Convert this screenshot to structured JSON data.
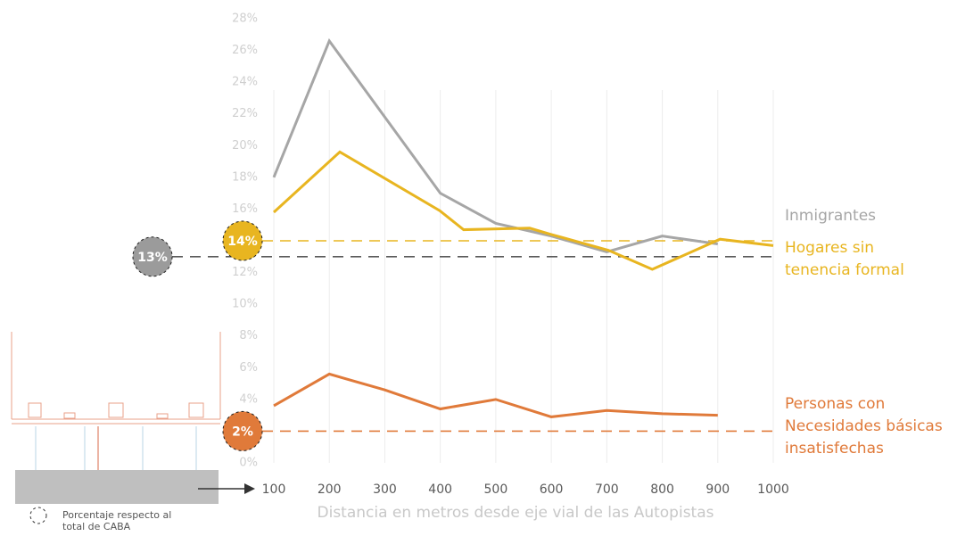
{
  "chart_data": {
    "type": "line",
    "x_label": "Distancia en metros desde eje vial de las Autopistas",
    "note": "Porcentaje respecto al total de CABA",
    "xlim": [
      100,
      1000
    ],
    "xticks": [
      100,
      200,
      300,
      400,
      500,
      600,
      700,
      800,
      900,
      1000
    ],
    "ylim": [
      0,
      28
    ],
    "yticks": [
      {
        "value": 0,
        "label": "0%"
      },
      {
        "value": 2,
        "label": "2%"
      },
      {
        "value": 4,
        "label": "4%"
      },
      {
        "value": 6,
        "label": "6%"
      },
      {
        "value": 8,
        "label": "8%"
      },
      {
        "value": 10,
        "label": "10%"
      },
      {
        "value": 12,
        "label": "12%"
      },
      {
        "value": 14,
        "label": "14%"
      },
      {
        "value": 16,
        "label": "16%"
      },
      {
        "value": 18,
        "label": "18%"
      },
      {
        "value": 20,
        "label": "20%"
      },
      {
        "value": 22,
        "label": "22%"
      },
      {
        "value": 24,
        "label": "24%"
      },
      {
        "value": 26,
        "label": "26%"
      },
      {
        "value": 28,
        "label": "28%"
      }
    ],
    "series": [
      {
        "name": "Inmigrantes",
        "color": "#a6a6a6",
        "x": [
          100,
          200,
          300,
          400,
          500,
          600,
          700,
          800,
          900
        ],
        "values": [
          18.0,
          26.6,
          21.8,
          17.0,
          15.1,
          14.3,
          13.3,
          14.3,
          13.8
        ]
      },
      {
        "name": "Hogares sin tenencia formal",
        "color": "#e8b520",
        "x": [
          100,
          219,
          399,
          442,
          561,
          600,
          703,
          782,
          904,
          1000
        ],
        "values": [
          15.8,
          19.6,
          15.9,
          14.7,
          14.8,
          14.4,
          13.4,
          12.2,
          14.1,
          13.7
        ]
      },
      {
        "name": "Personas con Necesidades básicas insatisfechas",
        "color": "#e07a3a",
        "x": [
          100,
          200,
          300,
          400,
          500,
          600,
          700,
          800,
          900
        ],
        "values": [
          3.6,
          5.6,
          4.6,
          3.4,
          4.0,
          2.9,
          3.3,
          3.1,
          3.0
        ]
      }
    ],
    "reference_lines": [
      {
        "value": 13,
        "label": "13%",
        "color": "#595959",
        "fill": "#9b9b9b"
      },
      {
        "value": 14,
        "label": "14%",
        "color": "#e8b520",
        "fill": "#e8b520"
      },
      {
        "value": 2,
        "label": "2%",
        "color": "#e07a3a",
        "fill": "#e07a3a"
      }
    ]
  }
}
